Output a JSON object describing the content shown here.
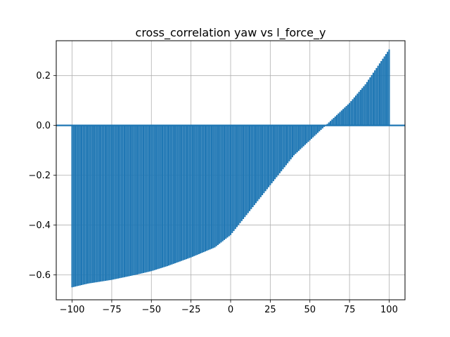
{
  "chart_data": {
    "type": "bar",
    "title": "cross_correlation yaw vs l_force_y",
    "xlabel": "",
    "ylabel": "",
    "xlim": [
      -110,
      110
    ],
    "ylim": [
      -0.7,
      0.34
    ],
    "grid": true,
    "bar_color": "#1f77b4",
    "x_ticks": [
      -100,
      -75,
      -50,
      -25,
      0,
      25,
      50,
      75,
      100
    ],
    "x_tick_labels": [
      "−100",
      "−75",
      "−50",
      "−25",
      "0",
      "25",
      "50",
      "75",
      "100"
    ],
    "y_ticks": [
      -0.6,
      -0.4,
      -0.2,
      0.0,
      0.2
    ],
    "y_tick_labels": [
      "−0.6",
      "−0.4",
      "−0.2",
      "0.0",
      "0.2"
    ],
    "series": [
      {
        "lags": {
          "start": -100,
          "end": 100,
          "step": 1
        },
        "anchor_points": [
          [
            -100,
            -0.65
          ],
          [
            -90,
            -0.635
          ],
          [
            -75,
            -0.62
          ],
          [
            -60,
            -0.6
          ],
          [
            -50,
            -0.585
          ],
          [
            -40,
            -0.565
          ],
          [
            -25,
            -0.53
          ],
          [
            -10,
            -0.49
          ],
          [
            0,
            -0.44
          ],
          [
            10,
            -0.36
          ],
          [
            25,
            -0.24
          ],
          [
            40,
            -0.12
          ],
          [
            50,
            -0.06
          ],
          [
            60,
            0.0
          ],
          [
            65,
            0.03
          ],
          [
            75,
            0.09
          ],
          [
            85,
            0.165
          ],
          [
            100,
            0.305
          ]
        ]
      }
    ]
  }
}
